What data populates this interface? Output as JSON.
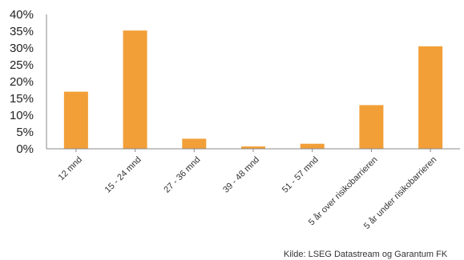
{
  "chart_data": {
    "type": "bar",
    "categories": [
      "12 mnd",
      "15 - 24 mnd",
      "27 - 36 mnd",
      "39 - 48 mnd",
      "51 - 57 mnd",
      "5 år over risikobarrieren",
      "5 år under risikobarrieren"
    ],
    "values": [
      17,
      35.2,
      3,
      0.7,
      1.5,
      13,
      30.5
    ],
    "value_unit": "%",
    "ylim": [
      0,
      40
    ],
    "yticks": [
      0,
      5,
      10,
      15,
      20,
      25,
      30,
      35,
      40
    ],
    "ytick_labels": [
      "0%",
      "5%",
      "10%",
      "15%",
      "20%",
      "25%",
      "30%",
      "35%",
      "40%"
    ],
    "grid": false,
    "legend": "none",
    "colors": {
      "bar": "#F29F38",
      "axis": "#888888"
    }
  },
  "source": "Kilde: LSEG Datastream og Garantum FK"
}
